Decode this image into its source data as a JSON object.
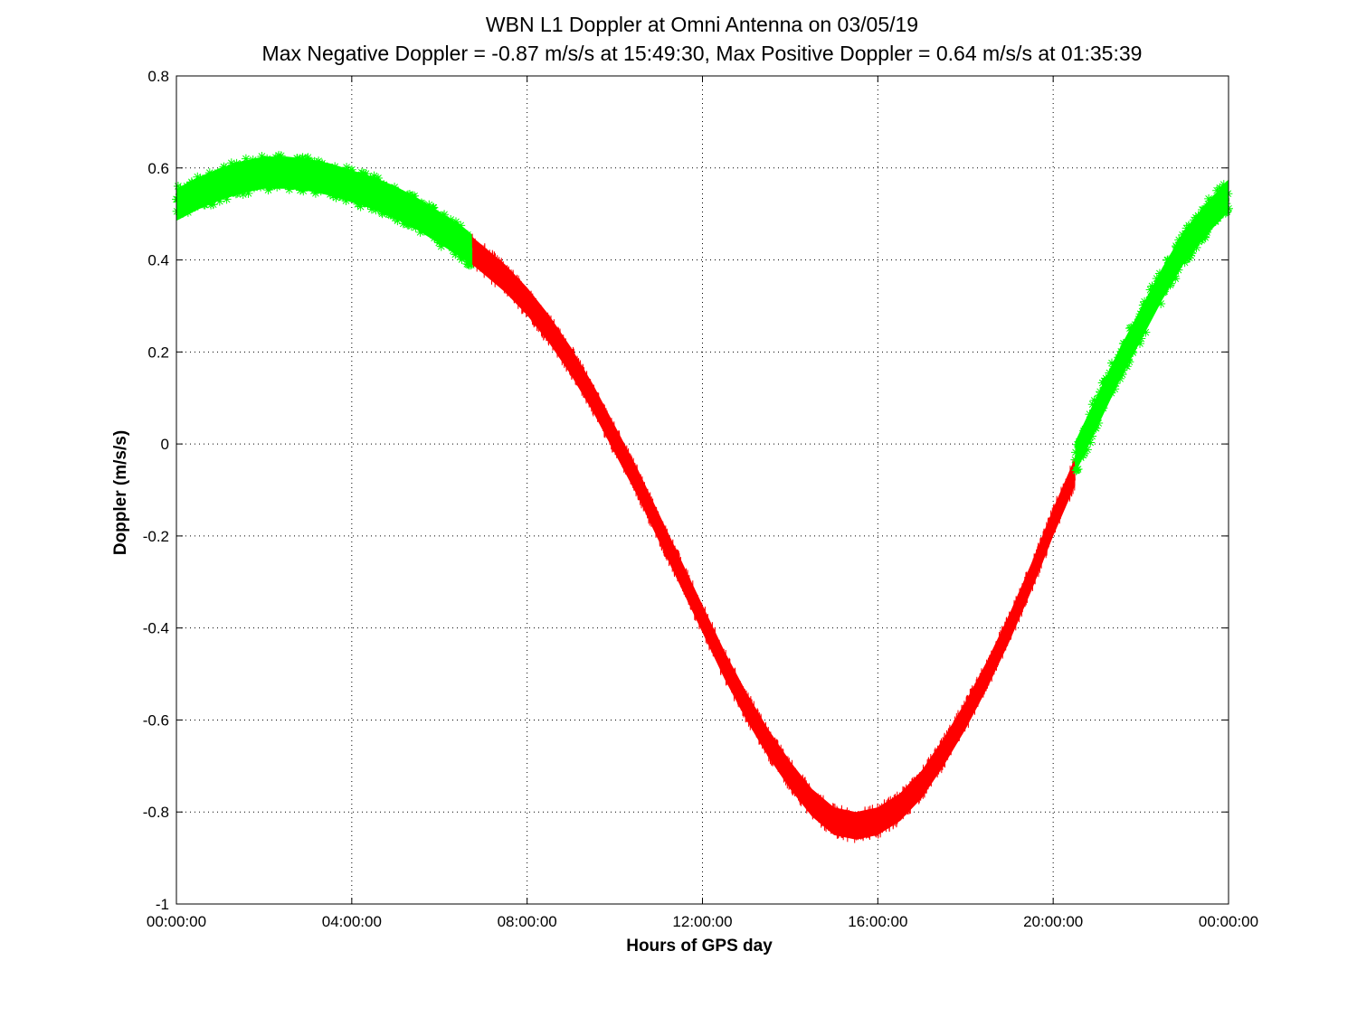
{
  "chart_data": {
    "type": "line",
    "title": "WBN  L1 Doppler at Omni Antenna on 03/05/19",
    "subtitle": "Max Negative Doppler = -0.87 m/s/s  at 15:49:30,   Max Positive Doppler = 0.64 m/s/s  at 01:35:39",
    "xlabel": "Hours of GPS day",
    "ylabel": "Doppler (m/s/s)",
    "x_unit": "hours",
    "xlim": [
      0,
      24
    ],
    "ylim": [
      -1,
      0.8
    ],
    "grid": true,
    "x_ticks": [
      {
        "value": 0,
        "label": "00:00:00"
      },
      {
        "value": 4,
        "label": "04:00:00"
      },
      {
        "value": 8,
        "label": "08:00:00"
      },
      {
        "value": 12,
        "label": "12:00:00"
      },
      {
        "value": 16,
        "label": "16:00:00"
      },
      {
        "value": 20,
        "label": "20:00:00"
      },
      {
        "value": 24,
        "label": "00:00:00"
      }
    ],
    "y_ticks": [
      {
        "value": 0.8,
        "label": "0.8"
      },
      {
        "value": 0.6,
        "label": "0.6"
      },
      {
        "value": 0.4,
        "label": "0.4"
      },
      {
        "value": 0.2,
        "label": "0.2"
      },
      {
        "value": 0,
        "label": "0"
      },
      {
        "value": -0.2,
        "label": "-0.2"
      },
      {
        "value": -0.4,
        "label": "-0.4"
      },
      {
        "value": -0.6,
        "label": "-0.6"
      },
      {
        "value": -0.8,
        "label": "-0.8"
      },
      {
        "value": -1,
        "label": "-1"
      }
    ],
    "series": [
      {
        "color": "#00ff00",
        "marker": "*",
        "spread": 0.035,
        "x": [
          0,
          0.5,
          1,
          1.5,
          2,
          2.5,
          3,
          3.5,
          4,
          4.5,
          5,
          5.5,
          6,
          6.5,
          6.75
        ],
        "y": [
          0.52,
          0.545,
          0.565,
          0.58,
          0.59,
          0.59,
          0.585,
          0.575,
          0.56,
          0.545,
          0.525,
          0.5,
          0.47,
          0.44,
          0.42
        ]
      },
      {
        "color": "#ff0000",
        "marker": "line",
        "spread": 0.03,
        "x": [
          6.75,
          7,
          7.5,
          8,
          8.5,
          9,
          9.5,
          10,
          10.5,
          11,
          11.5,
          12,
          12.5,
          13,
          13.5,
          14,
          14.5,
          15,
          15.5,
          16,
          16.5,
          17,
          17.5,
          18,
          18.5,
          19,
          19.5,
          20,
          20.5
        ],
        "y": [
          0.42,
          0.4,
          0.36,
          0.31,
          0.25,
          0.18,
          0.1,
          0.01,
          -0.08,
          -0.18,
          -0.28,
          -0.38,
          -0.48,
          -0.57,
          -0.65,
          -0.72,
          -0.78,
          -0.82,
          -0.83,
          -0.82,
          -0.79,
          -0.74,
          -0.67,
          -0.59,
          -0.5,
          -0.4,
          -0.29,
          -0.17,
          -0.06
        ]
      },
      {
        "color": "#00ff00",
        "marker": "*",
        "spread": 0.035,
        "x": [
          20.5,
          21,
          21.5,
          22,
          22.5,
          23,
          23.5,
          24
        ],
        "y": [
          -0.03,
          0.07,
          0.17,
          0.26,
          0.35,
          0.43,
          0.49,
          0.54
        ]
      }
    ]
  }
}
